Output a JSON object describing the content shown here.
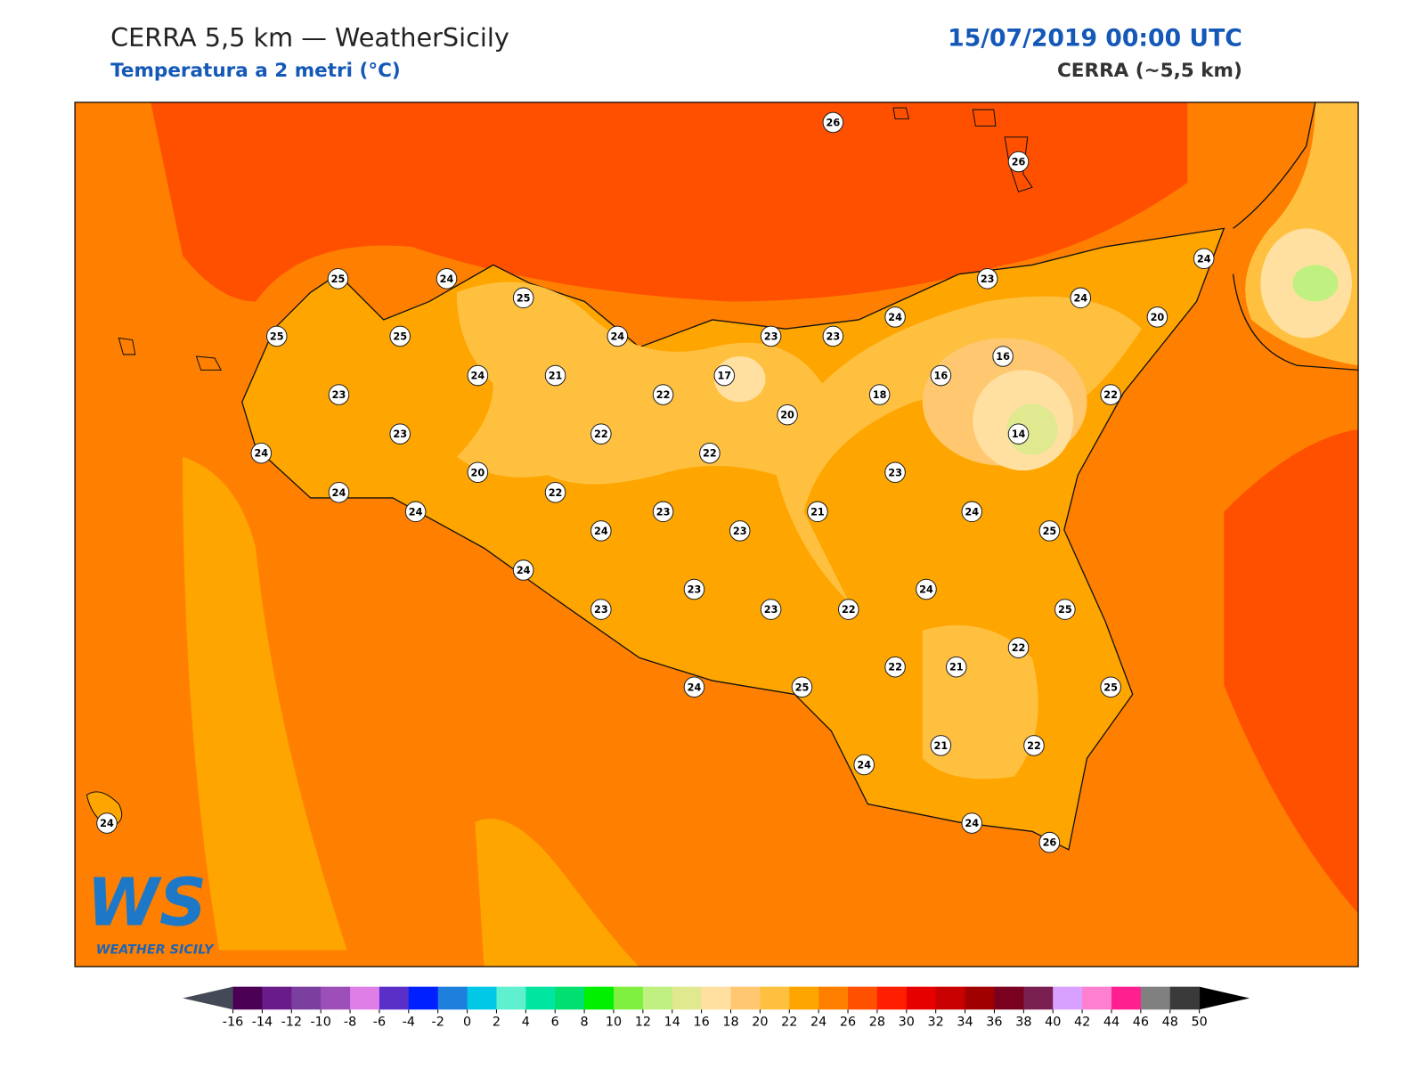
{
  "header": {
    "title": "CERRA 5,5 km — WeatherSicily",
    "subtitle": "Temperatura a 2 metri (°C)",
    "datetime": "15/07/2019 00:00 UTC",
    "model": "CERRA (~5,5 km)"
  },
  "logo": {
    "mark": "WS",
    "text": "WEATHER SICILY"
  },
  "stations": [
    26,
    26,
    25,
    24,
    25,
    23,
    24,
    24,
    25,
    25,
    24,
    23,
    23,
    24,
    20,
    16,
    16,
    24,
    21,
    17,
    23,
    22,
    18,
    22,
    20,
    23,
    22,
    14,
    24,
    22,
    20,
    23,
    24,
    22,
    24,
    23,
    21,
    24,
    24,
    23,
    25,
    24,
    23,
    24,
    23,
    23,
    22,
    25,
    22,
    22,
    21,
    24,
    25,
    25,
    21,
    22,
    24,
    24,
    26,
    24
  ],
  "colorbar": {
    "ticks": [
      -16,
      -14,
      -12,
      -10,
      -8,
      -6,
      -4,
      -2,
      0,
      2,
      4,
      6,
      8,
      10,
      12,
      14,
      16,
      18,
      20,
      22,
      24,
      26,
      28,
      30,
      32,
      34,
      36,
      38,
      40,
      42,
      44,
      46,
      48,
      50
    ],
    "colors": [
      "#4b0055",
      "#6a1b8a",
      "#7b3fa0",
      "#9c4fb8",
      "#e07ee8",
      "#5a2fc8",
      "#0020ff",
      "#1e7fdc",
      "#00c8e6",
      "#5ff0d0",
      "#00e6a0",
      "#00e070",
      "#00f000",
      "#80f040",
      "#c0f080",
      "#e0e890",
      "#ffe0a0",
      "#ffc870",
      "#ffc040",
      "#ffa500",
      "#ff8000",
      "#ff5000",
      "#ff1e00",
      "#e60000",
      "#c80000",
      "#a00000",
      "#7a0020",
      "#7a2050",
      "#d8a0ff",
      "#ff80d0",
      "#ff2090",
      "#808080",
      "#3a3a3a"
    ],
    "under_color": "#444a55",
    "over_color": "#000000"
  }
}
